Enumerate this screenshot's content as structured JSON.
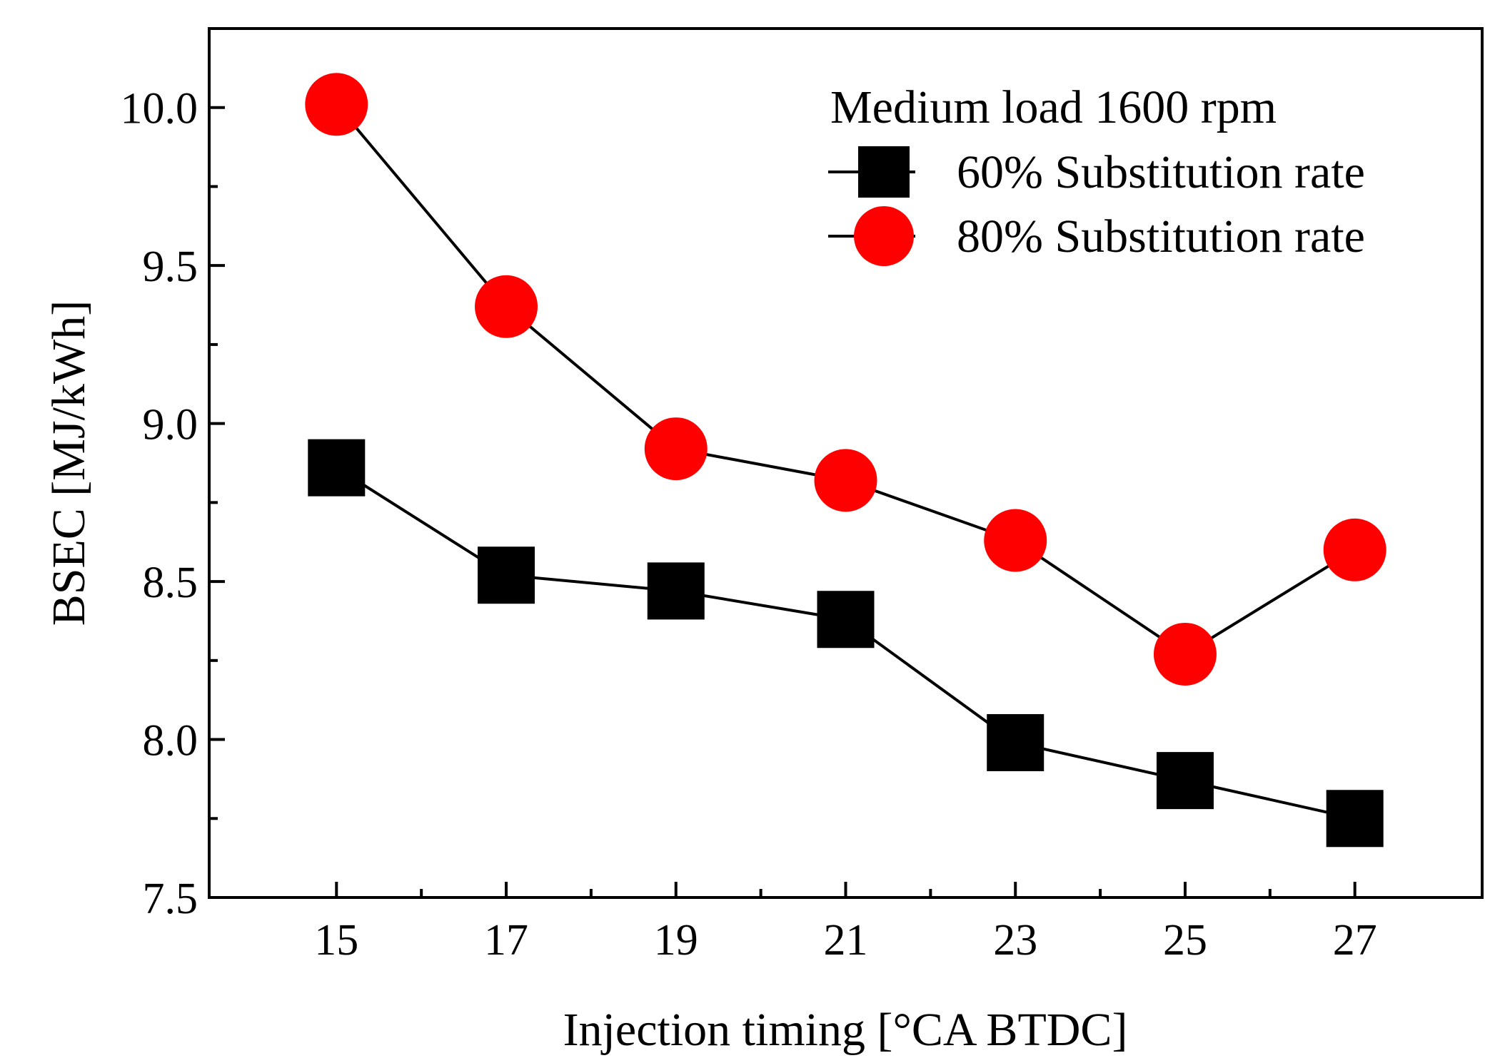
{
  "chart_data": {
    "type": "line",
    "title": "",
    "xlabel": "Injection timing [°CA BTDC]",
    "ylabel": "BSEC [MJ/kWh]",
    "xlim": [
      13.5,
      28.5
    ],
    "ylim": [
      7.5,
      10.25
    ],
    "x_ticks": [
      15,
      17,
      19,
      21,
      23,
      25,
      27
    ],
    "x_tick_labels": [
      "15",
      "17",
      "19",
      "21",
      "23",
      "25",
      "27"
    ],
    "x_minor_ticks": [
      16,
      18,
      20,
      22,
      24,
      26
    ],
    "y_ticks": [
      7.5,
      8.0,
      8.5,
      9.0,
      9.5,
      10.0
    ],
    "y_tick_labels": [
      "7.5",
      "8.0",
      "8.5",
      "9.0",
      "9.5",
      "10.0"
    ],
    "y_minor_ticks": [
      7.75,
      8.25,
      8.75,
      9.25,
      9.75
    ],
    "grid": false,
    "legend_title": "Medium load 1600 rpm",
    "legend_position": "top-right",
    "x": [
      15,
      17,
      19,
      21,
      23,
      25,
      27
    ],
    "series": [
      {
        "name": "60% Substitution rate",
        "marker": "square",
        "color": "#000000",
        "values": [
          8.86,
          8.52,
          8.47,
          8.38,
          7.99,
          7.87,
          7.75
        ]
      },
      {
        "name": "80% Substitution rate",
        "marker": "circle",
        "color": "#ff0000",
        "values": [
          10.01,
          9.37,
          8.92,
          8.82,
          8.63,
          8.27,
          8.6
        ]
      }
    ]
  }
}
